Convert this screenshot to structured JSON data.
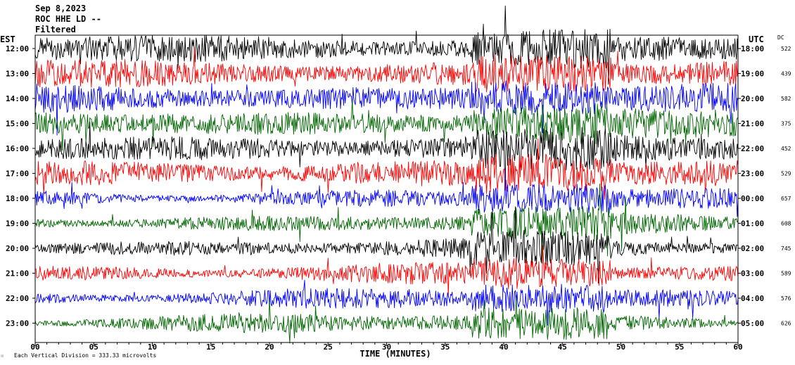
{
  "header": {
    "date": "Sep 8,2023",
    "station": "ROC HHE LD --",
    "filter": "Filtered"
  },
  "labels": {
    "left_zone": "EST",
    "right_zone": "UTC",
    "dc_header": "DC",
    "xlabel": "TIME (MINUTES)",
    "footer": "Each Vertical Division =  333.33 microvolts"
  },
  "chart_data": {
    "type": "line",
    "title": "",
    "xlabel": "TIME (MINUTES)",
    "ylabel": "",
    "xlim": [
      0,
      60
    ],
    "x_ticks": [
      "00",
      "05",
      "10",
      "15",
      "20",
      "25",
      "30",
      "35",
      "40",
      "45",
      "50",
      "55",
      "60"
    ],
    "grid": false,
    "legend": "none",
    "trace_colors": [
      "#000000",
      "#ff0000",
      "#0000ff",
      "#006600"
    ],
    "series": [
      {
        "local": "12:00",
        "utc": "18:00",
        "dc": "522",
        "color": "#000000"
      },
      {
        "local": "13:00",
        "utc": "19:00",
        "dc": "439",
        "color": "#ff0000"
      },
      {
        "local": "14:00",
        "utc": "20:00",
        "dc": "582",
        "color": "#0000ff"
      },
      {
        "local": "15:00",
        "utc": "21:00",
        "dc": "375",
        "color": "#006600"
      },
      {
        "local": "16:00",
        "utc": "22:00",
        "dc": "452",
        "color": "#000000"
      },
      {
        "local": "17:00",
        "utc": "23:00",
        "dc": "529",
        "color": "#ff0000"
      },
      {
        "local": "18:00",
        "utc": "00:00",
        "dc": "657",
        "color": "#0000ff"
      },
      {
        "local": "19:00",
        "utc": "01:00",
        "dc": "608",
        "color": "#006600"
      },
      {
        "local": "20:00",
        "utc": "02:00",
        "dc": "745",
        "color": "#000000"
      },
      {
        "local": "21:00",
        "utc": "03:00",
        "dc": "589",
        "color": "#ff0000"
      },
      {
        "local": "22:00",
        "utc": "04:00",
        "dc": "576",
        "color": "#0000ff"
      },
      {
        "local": "23:00",
        "utc": "05:00",
        "dc": "626",
        "color": "#006600"
      }
    ]
  }
}
